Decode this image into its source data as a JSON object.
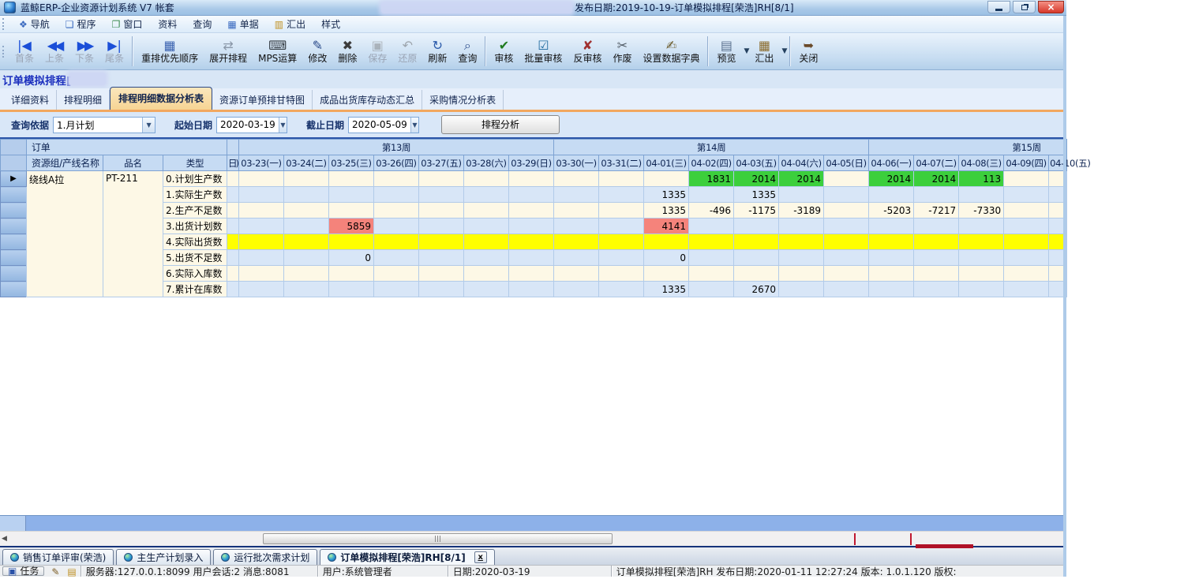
{
  "window": {
    "title_left": "蓝鲸ERP-企业资源计划系统 V7 帐套",
    "title_right": "发布日期:2019-10-19-订单模拟排程[荣浩]RH[8/1]"
  },
  "menu": {
    "items": [
      {
        "label": "导航",
        "icon": "nav-icon"
      },
      {
        "label": "程序",
        "icon": "programs-icon"
      },
      {
        "label": "窗口",
        "icon": "windows-icon"
      },
      {
        "label": "资料",
        "icon": ""
      },
      {
        "label": "查询",
        "icon": ""
      },
      {
        "label": "单据",
        "icon": "document-icon"
      },
      {
        "label": "汇出",
        "icon": "export-icon"
      },
      {
        "label": "样式",
        "icon": ""
      }
    ]
  },
  "toolbar": {
    "buttons": [
      {
        "label": "首条",
        "icon": "nav-first",
        "dim": true
      },
      {
        "label": "上条",
        "icon": "nav-prev",
        "dim": true
      },
      {
        "label": "下条",
        "icon": "nav-next",
        "dim": true
      },
      {
        "label": "尾条",
        "icon": "nav-last",
        "dim": true
      },
      {
        "sep": true
      },
      {
        "label": "重排优先顺序",
        "icon": "reorder-priority"
      },
      {
        "label": "展开排程",
        "icon": "expand-schedule"
      },
      {
        "label": "MPS运算",
        "icon": "mps-calc"
      },
      {
        "label": "修改",
        "icon": "edit"
      },
      {
        "label": "删除",
        "icon": "delete"
      },
      {
        "label": "保存",
        "icon": "save",
        "disabled": true
      },
      {
        "label": "还原",
        "icon": "undo",
        "disabled": true
      },
      {
        "label": "刷新",
        "icon": "refresh"
      },
      {
        "label": "查询",
        "icon": "search"
      },
      {
        "sep": true
      },
      {
        "label": "审核",
        "icon": "approve"
      },
      {
        "label": "批量审核",
        "icon": "batch-approve"
      },
      {
        "label": "反审核",
        "icon": "unapprove"
      },
      {
        "label": "作废",
        "icon": "void"
      },
      {
        "label": "设置数据字典",
        "icon": "data-dictionary"
      },
      {
        "sep": true
      },
      {
        "label": "预览",
        "icon": "preview",
        "dropdown": true
      },
      {
        "label": "汇出",
        "icon": "export",
        "dropdown": true
      },
      {
        "sep": true
      },
      {
        "label": "关闭",
        "icon": "close-door"
      }
    ]
  },
  "page": {
    "title": "订单模拟排程["
  },
  "tabs": {
    "items": [
      "详细资料",
      "排程明细",
      "排程明细数据分析表",
      "资源订单预排甘特图",
      "成品出货库存动态汇总",
      "采购情况分析表"
    ],
    "active_index": 2
  },
  "query": {
    "basis_label": "查询依据",
    "basis_value": "1.月计划",
    "start_label": "起始日期",
    "start_value": "2020-03-19",
    "end_label": "截止日期",
    "end_value": "2020-05-09",
    "analyze_button": "排程分析"
  },
  "grid": {
    "corner_label": "订单",
    "week_groups": [
      {
        "label": "第13周",
        "span": 7
      },
      {
        "label": "第14周",
        "span": 7
      },
      {
        "label": "第15周",
        "span": 5
      }
    ],
    "fixed_columns": [
      "资源组/产线名称",
      "品名",
      "类型"
    ],
    "partial_left_header": "日)",
    "date_columns": [
      "03-23(一)",
      "03-24(二)",
      "03-25(三)",
      "03-26(四)",
      "03-27(五)",
      "03-28(六)",
      "03-29(日)",
      "03-30(一)",
      "03-31(二)",
      "04-01(三)",
      "04-02(四)",
      "04-03(五)",
      "04-04(六)",
      "04-05(日)",
      "04-06(一)",
      "04-07(二)",
      "04-08(三)",
      "04-09(四)",
      "04-10(五)"
    ],
    "resource_group": "绕线A拉",
    "product_name": "PT-211",
    "selector_arrow": "▶",
    "rows": [
      {
        "type": "0.计划生产数",
        "cells": [
          {
            "date": "04-02(四)",
            "value": "1831",
            "color": "green"
          },
          {
            "date": "04-03(五)",
            "value": "2014",
            "color": "green"
          },
          {
            "date": "04-04(六)",
            "value": "2014",
            "color": "green"
          },
          {
            "date": "04-06(一)",
            "value": "2014",
            "color": "green"
          },
          {
            "date": "04-07(二)",
            "value": "2014",
            "color": "green"
          },
          {
            "date": "04-08(三)",
            "value": "113",
            "color": "green"
          }
        ]
      },
      {
        "type": "1.实际生产数",
        "cells": [
          {
            "date": "04-01(三)",
            "value": "1335"
          },
          {
            "date": "04-03(五)",
            "value": "1335"
          }
        ]
      },
      {
        "type": "2.生产不足数",
        "cells": [
          {
            "date": "04-01(三)",
            "value": "1335"
          },
          {
            "date": "04-02(四)",
            "value": "-496"
          },
          {
            "date": "04-03(五)",
            "value": "-1175"
          },
          {
            "date": "04-04(六)",
            "value": "-3189"
          },
          {
            "date": "04-06(一)",
            "value": "-5203"
          },
          {
            "date": "04-07(二)",
            "value": "-7217"
          },
          {
            "date": "04-08(三)",
            "value": "-7330"
          }
        ]
      },
      {
        "type": "3.出货计划数",
        "cells": [
          {
            "date": "03-25(三)",
            "value": "5859",
            "color": "red"
          },
          {
            "date": "04-01(三)",
            "value": "4141",
            "color": "red"
          }
        ]
      },
      {
        "type": "4.实际出货数",
        "highlight": "yellow",
        "cells": []
      },
      {
        "type": "5.出货不足数",
        "cells": [
          {
            "date": "03-25(三)",
            "value": "0"
          },
          {
            "date": "04-01(三)",
            "value": "0"
          }
        ]
      },
      {
        "type": "6.实际入库数",
        "cells": []
      },
      {
        "type": "7.累计在库数",
        "cells": [
          {
            "date": "04-01(三)",
            "value": "1335"
          },
          {
            "date": "04-03(五)",
            "value": "2670"
          }
        ]
      }
    ],
    "colors": {
      "green_cell": "#3ccf3c",
      "red_cell": "#f5837b",
      "yellow_row": "#ffff00"
    }
  },
  "mdi_tabs": {
    "items": [
      {
        "label": "销售订单评审(荣浩)"
      },
      {
        "label": "主生产计划录入"
      },
      {
        "label": "运行批次需求计划"
      },
      {
        "label": "订单模拟排程[荣浩]RH[8/1]",
        "active": true,
        "close_label": "x"
      }
    ]
  },
  "statusbar": {
    "task_label": "任务",
    "server": "服务器:127.0.0.1:8099 用户会话:2 消息:8081",
    "user": "用户:系统管理者",
    "date": "日期:2020-03-19",
    "info": "订单模拟排程[荣浩]RH 发布日期:2020-01-11 12:27:24 版本: 1.0.1.120 版权:"
  }
}
